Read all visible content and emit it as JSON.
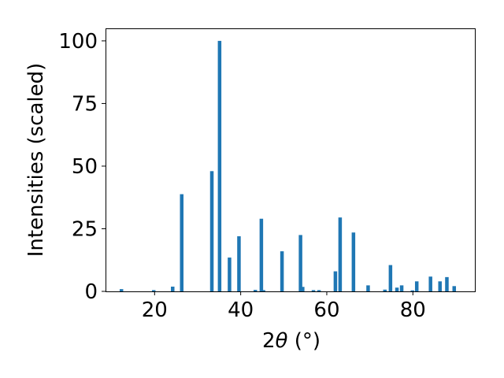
{
  "chart_data": {
    "type": "bar",
    "xlabel_prefix": "2",
    "xlabel_theta": "θ",
    "xlabel_unit": " (°)",
    "ylabel": "Intensities (scaled)",
    "xlim": [
      8.6,
      94.4
    ],
    "ylim": [
      0,
      105
    ],
    "xticks": [
      20,
      40,
      60,
      80
    ],
    "yticks": [
      0,
      25,
      50,
      75,
      100
    ],
    "grid": false,
    "bar_color": "#1f77b4",
    "series": [
      {
        "x": [
          12.3,
          19.8,
          24.2,
          26.3,
          33.3,
          35.1,
          37.4,
          39.6,
          43.4,
          44.8,
          45.3,
          49.6,
          53.9,
          54.4,
          56.9,
          58.2,
          62.0,
          63.1,
          66.2,
          69.6,
          73.5,
          74.8,
          76.3,
          77.4,
          79.9,
          80.9,
          84.1,
          86.3,
          87.9,
          89.6
        ],
        "values": [
          0.9,
          0.5,
          1.9,
          38.8,
          48.0,
          100.0,
          13.5,
          22.0,
          0.6,
          29.0,
          0.5,
          16.0,
          22.5,
          1.8,
          0.5,
          0.5,
          8.0,
          29.5,
          23.5,
          2.4,
          0.7,
          10.5,
          1.5,
          2.4,
          0.4,
          4.0,
          5.9,
          4.0,
          5.7,
          2.1
        ]
      }
    ]
  }
}
